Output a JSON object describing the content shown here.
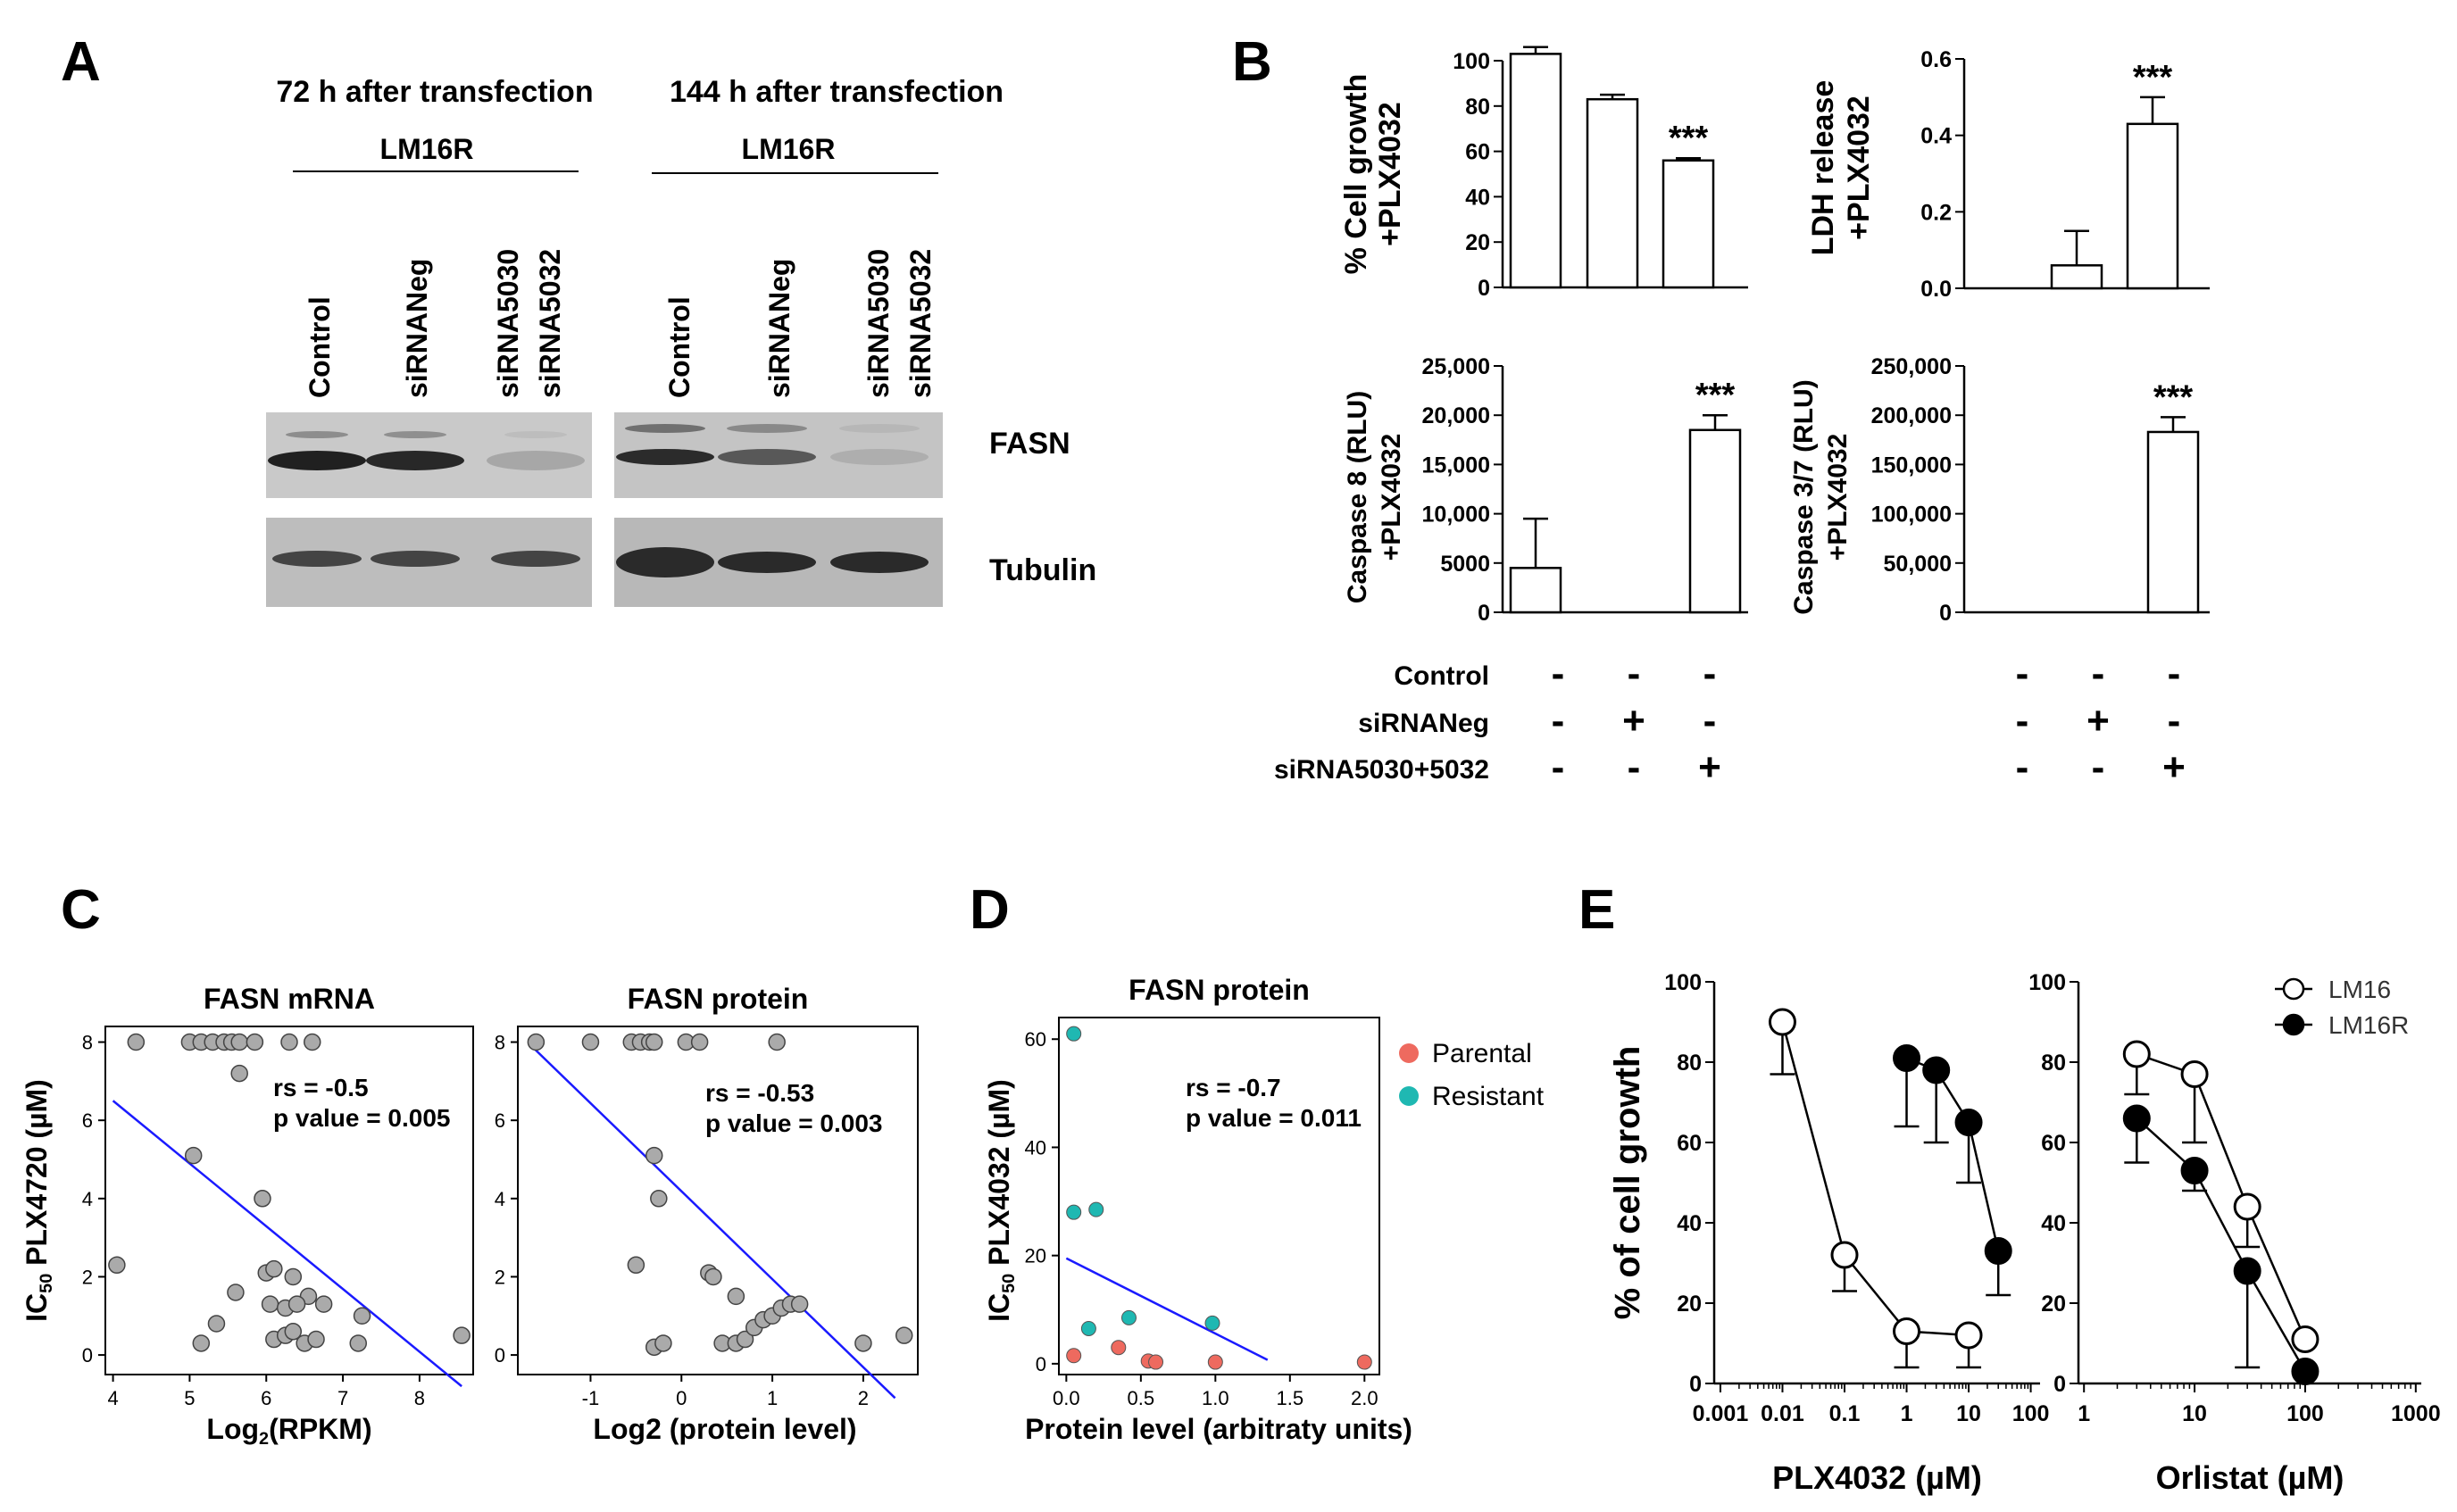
{
  "panel_letters": [
    "A",
    "B",
    "C",
    "D",
    "E"
  ],
  "panel_a": {
    "headers": [
      "72 h after transfection",
      "144 h after transfection"
    ],
    "cell_line": "LM16R",
    "lanes": [
      "Control",
      "siRNANeg",
      "siRNA5030",
      "siRNA5032"
    ],
    "bands": [
      "FASN",
      "Tubulin"
    ],
    "fasn_intensity_72h": [
      0.92,
      0.88,
      0.18
    ],
    "fasn_intensity_144h": [
      0.85,
      0.6,
      0.12
    ]
  },
  "panel_b": {
    "conditions": [
      "Control",
      "siRNANeg",
      "siRNA5030+5032"
    ],
    "signs": [
      [
        "-",
        "-",
        "-"
      ],
      [
        "-",
        "+",
        "-"
      ],
      [
        "-",
        "-",
        "+"
      ]
    ]
  },
  "panel_c": {
    "titles": [
      "FASN mRNA",
      "FASN protein"
    ],
    "ylabel_sub": "50",
    "ylabel_pre": "IC",
    "ylabel_post": " PLX4720 (µM)",
    "xlabel_1_pre": "Log",
    "xlabel_1_sub": "2",
    "xlabel_1_post": "(RPKM)",
    "xlabel_2": "Log2 (protein level)",
    "stats_1": [
      "rs = -0.5",
      "p value = 0.005"
    ],
    "stats_2": [
      "rs = -0.53",
      "p value = 0.003"
    ]
  },
  "panel_d": {
    "title": "FASN protein",
    "ylabel_pre": "IC",
    "ylabel_sub": "50",
    "ylabel_post": " PLX4032 (µM)",
    "xlabel": "Protein level (arbitraty units)",
    "stats": [
      "rs = -0.7",
      "p value = 0.011"
    ],
    "legend": [
      "Parental",
      "Resistant"
    ]
  },
  "panel_e": {
    "ylabel": "% of cell growth",
    "xlabels": [
      "PLX4032 (µM)",
      "Orlistat (µM)"
    ],
    "legend": [
      "LM16",
      "LM16R"
    ]
  },
  "colors": {
    "line": "#1a1aff",
    "point_grey": "#aaaaaa",
    "parental": "#ee6a5f",
    "resistant": "#1fb8b2"
  },
  "chart_data": [
    {
      "panel": "B",
      "type": "bar",
      "categories": [
        "Control",
        "siRNANeg",
        "siRNA5030+5032"
      ],
      "values": [
        103,
        83,
        56
      ],
      "errors": [
        3,
        2,
        1
      ],
      "ylabel": "% Cell growth +PLX4032",
      "ylim": [
        0,
        100
      ],
      "yticks": [
        "0",
        "20",
        "40",
        "60",
        "80",
        "100"
      ],
      "significance": [
        null,
        null,
        "***"
      ]
    },
    {
      "panel": "B",
      "type": "bar",
      "categories": [
        "Control",
        "siRNANeg",
        "siRNA5030+5032"
      ],
      "values": [
        0,
        0.06,
        0.43
      ],
      "errors": [
        0,
        0.09,
        0.07
      ],
      "ylabel": "LDH release +PLX4032",
      "ylim": [
        0,
        0.6
      ],
      "yticks": [
        "0.0",
        "0.2",
        "0.4",
        "0.6"
      ],
      "significance": [
        null,
        null,
        "***"
      ]
    },
    {
      "panel": "B",
      "type": "bar",
      "categories": [
        "Control",
        "siRNANeg",
        "siRNA5030+5032"
      ],
      "values": [
        4500,
        0,
        18500
      ],
      "errors": [
        5000,
        0,
        1500
      ],
      "ylabel": "Caspase 8 (RLU) +PLX4032",
      "ylim": [
        0,
        25000
      ],
      "yticks": [
        "0",
        "5000",
        "10,000",
        "15,000",
        "20,000",
        "25,000"
      ],
      "significance": [
        null,
        null,
        "***"
      ]
    },
    {
      "panel": "B",
      "type": "bar",
      "categories": [
        "Control",
        "siRNANeg",
        "siRNA5030+5032"
      ],
      "values": [
        0,
        0,
        183000
      ],
      "errors": [
        0,
        0,
        15000
      ],
      "ylabel": "Caspase 3/7 (RLU) +PLX4032",
      "ylim": [
        0,
        250000
      ],
      "yticks": [
        "0",
        "50,000",
        "100,000",
        "150,000",
        "200,000",
        "250,000"
      ],
      "significance": [
        null,
        null,
        "***"
      ]
    },
    {
      "panel": "C",
      "type": "scatter",
      "title": "FASN mRNA",
      "xlabel": "Log2(RPKM)",
      "ylabel": "IC50 PLX4720 (µM)",
      "xlim": [
        3.9,
        8.7
      ],
      "ylim": [
        -0.5,
        8.4
      ],
      "xticks": [
        "4",
        "5",
        "6",
        "7",
        "8"
      ],
      "yticks": [
        "0",
        "2",
        "4",
        "6",
        "8"
      ],
      "points": [
        [
          4.05,
          2.3
        ],
        [
          4.3,
          8
        ],
        [
          5.0,
          8
        ],
        [
          5.15,
          8
        ],
        [
          5.3,
          8
        ],
        [
          5.45,
          8
        ],
        [
          5.55,
          8
        ],
        [
          5.65,
          8
        ],
        [
          5.85,
          8
        ],
        [
          6.3,
          8
        ],
        [
          6.6,
          8
        ],
        [
          5.65,
          7.2
        ],
        [
          5.05,
          5.1
        ],
        [
          5.95,
          4.0
        ],
        [
          5.35,
          0.8
        ],
        [
          5.15,
          0.3
        ],
        [
          5.6,
          1.6
        ],
        [
          6.0,
          2.1
        ],
        [
          6.1,
          2.2
        ],
        [
          6.35,
          2.0
        ],
        [
          6.55,
          1.5
        ],
        [
          6.05,
          1.3
        ],
        [
          6.25,
          1.2
        ],
        [
          6.4,
          1.3
        ],
        [
          6.75,
          1.3
        ],
        [
          6.1,
          0.4
        ],
        [
          6.25,
          0.5
        ],
        [
          6.35,
          0.6
        ],
        [
          6.5,
          0.3
        ],
        [
          6.65,
          0.4
        ],
        [
          7.25,
          1.0
        ],
        [
          7.2,
          0.3
        ],
        [
          8.55,
          0.5
        ]
      ],
      "fit": [
        [
          4.0,
          6.5
        ],
        [
          8.55,
          -0.8
        ]
      ],
      "stats": [
        "rs = -0.5",
        "p value = 0.005"
      ]
    },
    {
      "panel": "C",
      "type": "scatter",
      "title": "FASN protein",
      "xlabel": "Log2 (protein level)",
      "ylabel": "IC50 PLX4720 (µM)",
      "xlim": [
        -1.8,
        2.6
      ],
      "ylim": [
        -0.5,
        8.4
      ],
      "xticks": [
        "-1",
        "0",
        "1",
        "2"
      ],
      "yticks": [
        "0",
        "2",
        "4",
        "6",
        "8"
      ],
      "points": [
        [
          -1.6,
          8
        ],
        [
          -1.0,
          8
        ],
        [
          -0.55,
          8
        ],
        [
          -0.45,
          8
        ],
        [
          -0.35,
          8
        ],
        [
          -0.3,
          8
        ],
        [
          0.05,
          8
        ],
        [
          0.2,
          8
        ],
        [
          1.05,
          8
        ],
        [
          -0.3,
          5.1
        ],
        [
          -0.25,
          4.0
        ],
        [
          -0.5,
          2.3
        ],
        [
          0.3,
          2.1
        ],
        [
          0.35,
          2.0
        ],
        [
          0.6,
          1.5
        ],
        [
          -0.3,
          0.2
        ],
        [
          -0.2,
          0.3
        ],
        [
          0.45,
          0.3
        ],
        [
          0.6,
          0.3
        ],
        [
          0.7,
          0.4
        ],
        [
          0.8,
          0.7
        ],
        [
          0.9,
          0.9
        ],
        [
          1.0,
          1.0
        ],
        [
          1.1,
          1.2
        ],
        [
          1.2,
          1.3
        ],
        [
          1.3,
          1.3
        ],
        [
          2.0,
          0.3
        ],
        [
          2.45,
          0.5
        ]
      ],
      "fit": [
        [
          -1.65,
          7.9
        ],
        [
          2.35,
          -1.1
        ]
      ],
      "stats": [
        "rs = -0.53",
        "p value = 0.003"
      ]
    },
    {
      "panel": "D",
      "type": "scatter",
      "title": "FASN protein",
      "xlabel": "Protein level (arbitraty units)",
      "ylabel": "IC50 PLX4032 (µM)",
      "xlim": [
        -0.05,
        2.1
      ],
      "ylim": [
        -2,
        64
      ],
      "xticks": [
        "0.0",
        "0.5",
        "1.0",
        "1.5",
        "2.0"
      ],
      "yticks": [
        "0",
        "20",
        "40",
        "60"
      ],
      "series": [
        {
          "name": "Parental",
          "points": [
            [
              0.05,
              1.5
            ],
            [
              0.35,
              3.0
            ],
            [
              0.55,
              0.5
            ],
            [
              0.6,
              0.3
            ],
            [
              1.0,
              0.3
            ],
            [
              2.0,
              0.3
            ]
          ]
        },
        {
          "name": "Resistant",
          "points": [
            [
              0.05,
              61
            ],
            [
              0.05,
              28
            ],
            [
              0.2,
              28.5
            ],
            [
              0.15,
              6.5
            ],
            [
              0.42,
              8.5
            ],
            [
              0.98,
              7.5
            ]
          ]
        }
      ],
      "fit": [
        [
          0.0,
          19.5
        ],
        [
          1.35,
          0.7
        ]
      ],
      "stats": [
        "rs = -0.7",
        "p value = 0.011"
      ]
    },
    {
      "panel": "E",
      "type": "line",
      "xscale": "log",
      "xlabel": "PLX4032 (µM)",
      "ylabel": "% of cell growth",
      "ylim": [
        0,
        100
      ],
      "xticks": [
        "0.001",
        "0.01",
        "0.1",
        "1",
        "10",
        "100"
      ],
      "yticks": [
        "0",
        "20",
        "40",
        "60",
        "80",
        "100"
      ],
      "series": [
        {
          "name": "LM16",
          "x": [
            0.01,
            0.1,
            1,
            10
          ],
          "y": [
            90,
            32,
            13,
            12
          ],
          "errors": [
            13,
            9,
            9,
            8
          ]
        },
        {
          "name": "LM16R",
          "x": [
            1,
            3,
            10,
            30
          ],
          "y": [
            81,
            78,
            65,
            33
          ],
          "errors": [
            17,
            18,
            15,
            11
          ]
        }
      ]
    },
    {
      "panel": "E",
      "type": "line",
      "xscale": "log",
      "xlabel": "Orlistat (µM)",
      "ylabel": "% of cell growth",
      "ylim": [
        0,
        100
      ],
      "xticks": [
        "1",
        "10",
        "100",
        "1000"
      ],
      "yticks": [
        "0",
        "20",
        "40",
        "60",
        "80",
        "100"
      ],
      "series": [
        {
          "name": "LM16",
          "x": [
            3,
            10,
            30,
            100
          ],
          "y": [
            82,
            77,
            44,
            11
          ],
          "errors": [
            10,
            17,
            10,
            0
          ]
        },
        {
          "name": "LM16R",
          "x": [
            3,
            10,
            30,
            100
          ],
          "y": [
            66,
            53,
            28,
            3
          ],
          "errors": [
            11,
            5,
            24,
            0
          ]
        }
      ]
    }
  ]
}
